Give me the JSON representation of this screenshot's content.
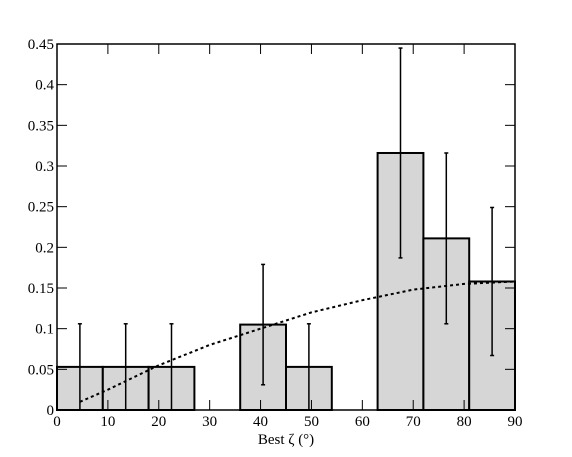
{
  "chart_data": {
    "type": "histogram",
    "xlabel": "Best ζ (°)",
    "bins": [
      0,
      9,
      18,
      27,
      36,
      45,
      54,
      63,
      72,
      81,
      90
    ],
    "values": [
      0.053,
      0.053,
      0.053,
      0,
      0.105,
      0.053,
      0,
      0.316,
      0.211,
      0.158
    ],
    "errors": [
      0.053,
      0.053,
      0.053,
      null,
      0.074,
      0.053,
      null,
      0.129,
      0.105,
      0.091
    ],
    "color": "#d6d6d6",
    "curve": {
      "x": [
        4.5,
        10,
        20,
        30,
        40,
        50,
        60,
        70,
        80,
        90
      ],
      "y": [
        0.01,
        0.025,
        0.055,
        0.08,
        0.1,
        0.12,
        0.135,
        0.148,
        0.155,
        0.158
      ]
    },
    "xlim": [
      0,
      90
    ],
    "xticks": [
      0,
      10,
      20,
      30,
      40,
      50,
      60,
      70,
      80,
      90
    ],
    "ylim": [
      0,
      0.45
    ],
    "yticks": [
      0,
      0.05,
      0.1,
      0.15,
      0.2,
      0.25,
      0.3,
      0.35,
      0.4,
      0.45
    ]
  }
}
